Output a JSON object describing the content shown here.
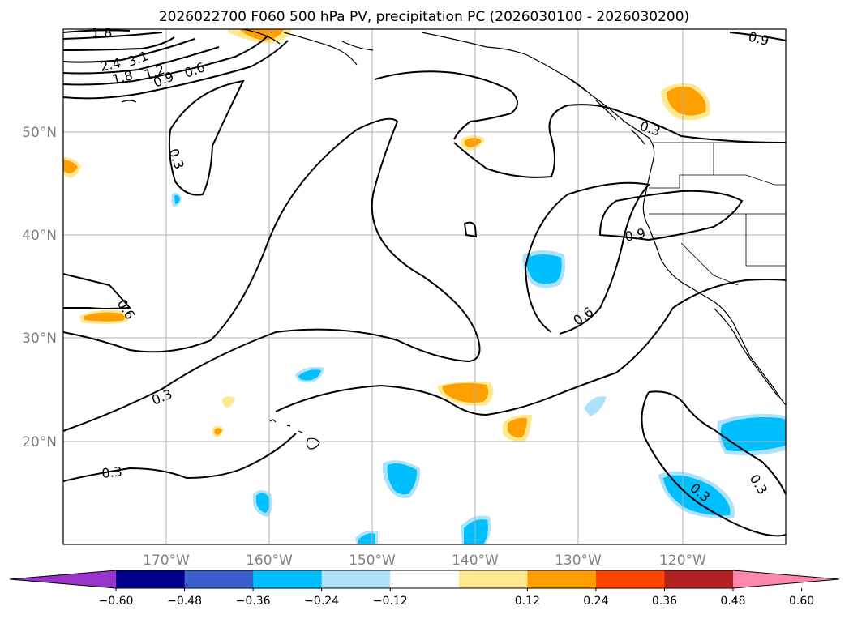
{
  "title": "2026022700 F060 500 hPa PV, precipitation PC (2026030100 - 2026030200)",
  "lat_labels": [
    "50°N",
    "40°N",
    "30°N",
    "20°N"
  ],
  "lon_labels": [
    "170°W",
    "160°W",
    "150°W",
    "140°W",
    "130°W",
    "120°W"
  ],
  "contour_labels": [
    "1.8",
    "2.4",
    "3.1",
    "1.8",
    "1.2",
    "0.9",
    "0.6",
    "0.3",
    "0.6",
    "0.3",
    "0.3",
    "0.6",
    "0.9",
    "0.3",
    "0.9",
    "0.3",
    "0.3"
  ],
  "colorbar": {
    "tick_labels": [
      "−0.60",
      "−0.48",
      "−0.36",
      "−0.24",
      "−0.12",
      "0.12",
      "0.24",
      "0.36",
      "0.48",
      "0.60"
    ],
    "colors": [
      "#9933cc",
      "#00008b",
      "#3a5fcd",
      "#00bfff",
      "#aee2fa",
      "#ffffff",
      "#ffe990",
      "#ffa000",
      "#ff4500",
      "#b22222",
      "#ff88aa"
    ]
  }
}
